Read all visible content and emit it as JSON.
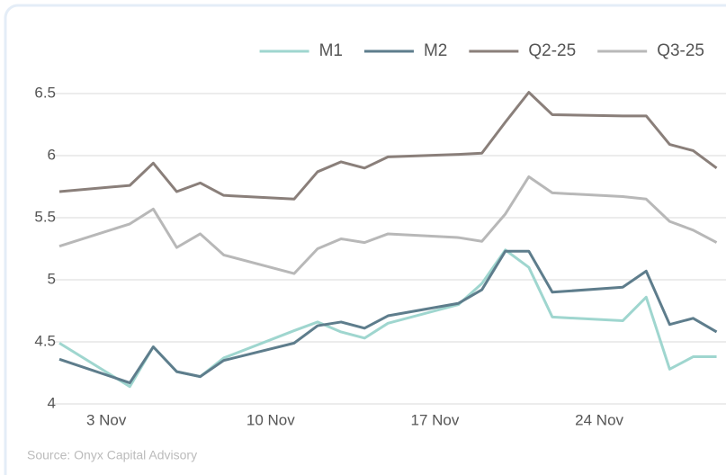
{
  "chart_data": {
    "type": "line",
    "x": [
      1,
      4,
      5,
      6,
      7,
      8,
      11,
      12,
      13,
      14,
      15,
      18,
      19,
      20,
      21,
      22,
      25,
      26,
      27,
      28,
      29
    ],
    "xlim": [
      1,
      29.4
    ],
    "xticks": [
      {
        "value": 3,
        "label": "3 Nov"
      },
      {
        "value": 10,
        "label": "10 Nov"
      },
      {
        "value": 17,
        "label": "17 Nov"
      },
      {
        "value": 24,
        "label": "24 Nov"
      }
    ],
    "ylim": [
      4,
      6.5
    ],
    "yticks": [
      4,
      4.5,
      5,
      5.5,
      6,
      6.5
    ],
    "grid": true,
    "legend": "top-right",
    "series": [
      {
        "name": "M1",
        "color": "#9fd6cf",
        "values": [
          4.49,
          4.14,
          4.46,
          4.26,
          4.22,
          4.37,
          4.59,
          4.66,
          4.58,
          4.53,
          4.65,
          4.8,
          4.97,
          5.24,
          5.1,
          4.7,
          4.67,
          4.86,
          4.28,
          4.38,
          4.38
        ]
      },
      {
        "name": "M2",
        "color": "#5e7d8c",
        "values": [
          4.36,
          4.17,
          4.46,
          4.26,
          4.22,
          4.35,
          4.49,
          4.63,
          4.66,
          4.61,
          4.71,
          4.81,
          4.92,
          5.23,
          5.23,
          4.9,
          4.94,
          5.07,
          4.64,
          4.69,
          4.58
        ]
      },
      {
        "name": "Q2-25",
        "color": "#8a7f7a",
        "values": [
          5.71,
          5.76,
          5.94,
          5.71,
          5.78,
          5.68,
          5.65,
          5.87,
          5.95,
          5.9,
          5.99,
          6.01,
          6.02,
          6.27,
          6.51,
          6.33,
          6.32,
          6.32,
          6.09,
          6.04,
          5.9
        ]
      },
      {
        "name": "Q3-25",
        "color": "#b8b8b8",
        "values": [
          5.27,
          5.45,
          5.57,
          5.26,
          5.37,
          5.2,
          5.05,
          5.25,
          5.33,
          5.3,
          5.37,
          5.34,
          5.31,
          5.53,
          5.83,
          5.7,
          5.67,
          5.65,
          5.47,
          5.4,
          5.3
        ]
      }
    ],
    "source": "Source: Onyx Capital Advisory"
  }
}
